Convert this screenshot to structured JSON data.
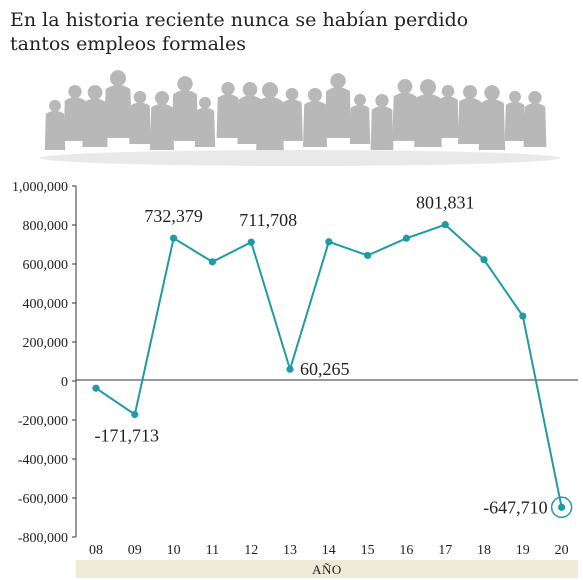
{
  "title": "En la historia reciente nunca se habían perdido tantos empleos formales",
  "chart_data": {
    "type": "line",
    "title": "En la historia reciente nunca se habían perdido tantos empleos formales",
    "xlabel": "AÑO",
    "ylabel": "",
    "categories": [
      "08",
      "09",
      "10",
      "11",
      "12",
      "13",
      "14",
      "15",
      "16",
      "17",
      "18",
      "19",
      "20"
    ],
    "values": [
      -37000,
      -171713,
      732379,
      611000,
      711708,
      60265,
      714000,
      644000,
      732000,
      801831,
      622000,
      333000,
      -647710
    ],
    "yticks": [
      "1,000,000",
      "800,000",
      "600,000",
      "400,000",
      "200,000",
      "0",
      "-200,000",
      "-400,000",
      "-600,000",
      "-800,000"
    ],
    "ylim": [
      -800000,
      1000000
    ],
    "grid": false,
    "highlight_last": true,
    "data_labels": [
      {
        "index": 1,
        "text": "-171,713"
      },
      {
        "index": 2,
        "text": "732,379"
      },
      {
        "index": 4,
        "text": "711,708"
      },
      {
        "index": 5,
        "text": "60,265"
      },
      {
        "index": 9,
        "text": "801,831"
      },
      {
        "index": 12,
        "text": "-647,710"
      }
    ],
    "colors": {
      "line": "#1f9aa6",
      "zero_line": "#333333",
      "xaxis_band": "#efe9d8"
    }
  },
  "icons": {
    "header_art": "crowd-silhouettes-icon"
  }
}
